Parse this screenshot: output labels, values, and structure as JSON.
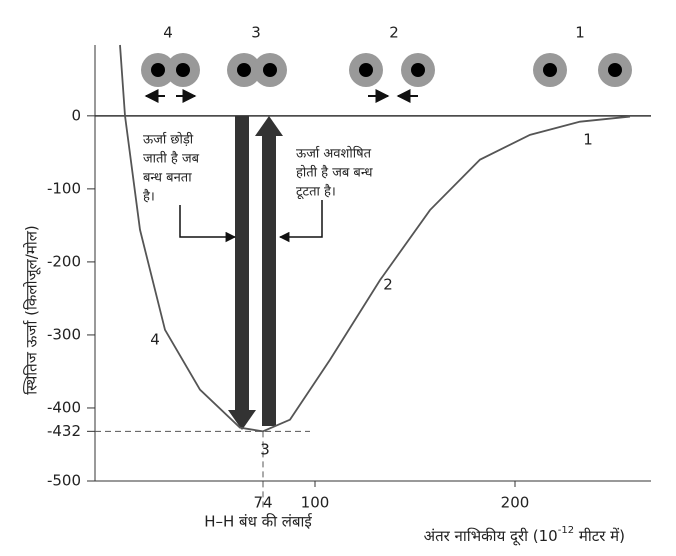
{
  "chart_data": {
    "type": "line",
    "x_label": "अंतर नाभिकीय दूरी (10",
    "x_label_exponent": "-12",
    "x_label_end": " मीटर में)",
    "y_label": "स्थितिज ऊर्जा (किलोजूल/मोल)",
    "bond_length_label": "H–H बंध की लंबाई",
    "release_note": [
      "ऊर्जा छोड़ी",
      "जाती है जब",
      "बन्ध बनता",
      "है।"
    ],
    "absorb_note": [
      "ऊर्जा अवशोषित",
      "होती है जब बन्ध",
      "टूटता है।"
    ],
    "atom_labels": [
      "4",
      "3",
      "2",
      "1"
    ],
    "curve_labels": [
      "1",
      "2",
      "3",
      "4"
    ],
    "x": [
      2.5,
      5,
      12.5,
      25,
      42.5,
      62.5,
      74,
      87.5,
      107.5,
      132.5,
      157.5,
      182.5,
      207.5,
      232.5,
      257.5
    ],
    "series": [
      {
        "color": "#555555",
        "values": [
          97,
          0,
          -156,
          -293,
          -375,
          -427,
          -432,
          -416,
          -334,
          -225,
          -129,
          -60,
          -26,
          -8,
          -1
        ]
      }
    ],
    "xlim": [
      -10,
      268
    ],
    "xticks": [
      74,
      100,
      200
    ],
    "ylim": [
      -500,
      97
    ],
    "yticks": [
      0,
      -100,
      -200,
      -300,
      -400,
      -432,
      -500
    ]
  }
}
